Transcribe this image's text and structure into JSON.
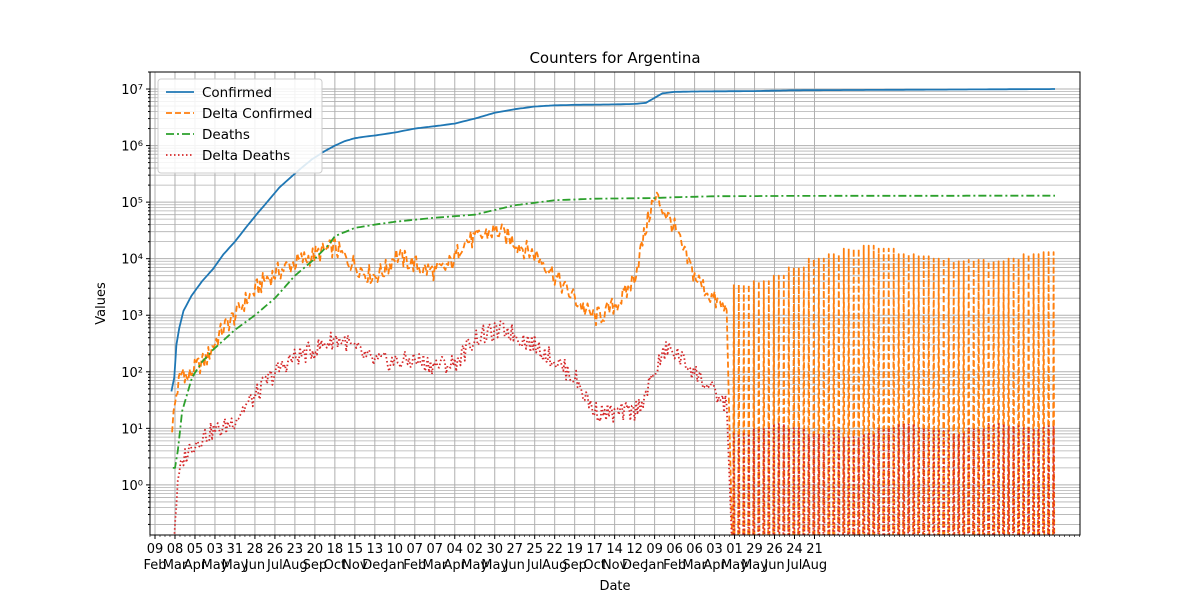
{
  "chart_data": {
    "type": "line",
    "title": "Counters for Argentina",
    "xlabel": "Date",
    "ylabel": "Values",
    "yscale": "log",
    "ylim": [
      0.13,
      20000000
    ],
    "grid": true,
    "legend_position": "top-left",
    "y_ticks": [
      {
        "value": 1,
        "label": "10⁰"
      },
      {
        "value": 10,
        "label": "10¹"
      },
      {
        "value": 100,
        "label": "10²"
      },
      {
        "value": 1000,
        "label": "10³"
      },
      {
        "value": 10000,
        "label": "10⁴"
      },
      {
        "value": 100000,
        "label": "10⁵"
      },
      {
        "value": 1000000,
        "label": "10⁶"
      },
      {
        "value": 10000000,
        "label": "10⁷"
      }
    ],
    "x_ticks": [
      {
        "day": "09",
        "month": "Feb"
      },
      {
        "day": "08",
        "month": "Mar"
      },
      {
        "day": "05",
        "month": "Apr"
      },
      {
        "day": "03",
        "month": "May"
      },
      {
        "day": "31",
        "month": "May"
      },
      {
        "day": "28",
        "month": "Jun"
      },
      {
        "day": "26",
        "month": "Jul"
      },
      {
        "day": "23",
        "month": "Aug"
      },
      {
        "day": "20",
        "month": "Sep"
      },
      {
        "day": "18",
        "month": "Oct"
      },
      {
        "day": "15",
        "month": "Nov"
      },
      {
        "day": "13",
        "month": "Dec"
      },
      {
        "day": "10",
        "month": "Jan"
      },
      {
        "day": "07",
        "month": "Feb"
      },
      {
        "day": "07",
        "month": "Mar"
      },
      {
        "day": "04",
        "month": "Apr"
      },
      {
        "day": "02",
        "month": "May"
      },
      {
        "day": "30",
        "month": "May"
      },
      {
        "day": "27",
        "month": "Jun"
      },
      {
        "day": "25",
        "month": "Jul"
      },
      {
        "day": "22",
        "month": "Aug"
      },
      {
        "day": "19",
        "month": "Sep"
      },
      {
        "day": "17",
        "month": "Oct"
      },
      {
        "day": "14",
        "month": "Nov"
      },
      {
        "day": "12",
        "month": "Dec"
      },
      {
        "day": "09",
        "month": "Jan"
      },
      {
        "day": "06",
        "month": "Feb"
      },
      {
        "day": "06",
        "month": "Mar"
      },
      {
        "day": "03",
        "month": "Apr"
      },
      {
        "day": "01",
        "month": "May"
      },
      {
        "day": "29",
        "month": "May"
      },
      {
        "day": "26",
        "month": "Jun"
      },
      {
        "day": "24",
        "month": "Jul"
      },
      {
        "day": "21",
        "month": "Aug"
      }
    ],
    "x_domain": [
      "2020-02-02",
      "2023-08-28"
    ],
    "series": [
      {
        "name": "Confirmed",
        "color": "#1f77b4",
        "style": "solid",
        "points": [
          [
            "2020-03-03",
            45
          ],
          [
            "2020-03-07",
            80
          ],
          [
            "2020-03-10",
            300
          ],
          [
            "2020-03-14",
            600
          ],
          [
            "2020-03-20",
            1200
          ],
          [
            "2020-03-31",
            2200
          ],
          [
            "2020-04-15",
            4000
          ],
          [
            "2020-04-30",
            6500
          ],
          [
            "2020-05-15",
            12000
          ],
          [
            "2020-05-31",
            20000
          ],
          [
            "2020-06-15",
            35000
          ],
          [
            "2020-06-30",
            60000
          ],
          [
            "2020-07-15",
            100000
          ],
          [
            "2020-08-01",
            180000
          ],
          [
            "2020-08-15",
            260000
          ],
          [
            "2020-09-01",
            400000
          ],
          [
            "2020-09-15",
            560000
          ],
          [
            "2020-10-01",
            760000
          ],
          [
            "2020-10-18",
            1000000
          ],
          [
            "2020-11-01",
            1200000
          ],
          [
            "2020-11-15",
            1350000
          ],
          [
            "2020-12-01",
            1450000
          ],
          [
            "2020-12-15",
            1520000
          ],
          [
            "2021-01-10",
            1700000
          ],
          [
            "2021-02-07",
            2000000
          ],
          [
            "2021-03-07",
            2200000
          ],
          [
            "2021-04-04",
            2450000
          ],
          [
            "2021-05-02",
            3000000
          ],
          [
            "2021-05-30",
            3800000
          ],
          [
            "2021-06-27",
            4400000
          ],
          [
            "2021-07-25",
            4900000
          ],
          [
            "2021-08-22",
            5150000
          ],
          [
            "2021-09-19",
            5250000
          ],
          [
            "2021-10-17",
            5300000
          ],
          [
            "2021-11-14",
            5350000
          ],
          [
            "2021-12-12",
            5450000
          ],
          [
            "2021-12-28",
            5700000
          ],
          [
            "2022-01-09",
            7000000
          ],
          [
            "2022-01-20",
            8400000
          ],
          [
            "2022-02-06",
            8900000
          ],
          [
            "2022-03-06",
            9050000
          ],
          [
            "2022-04-03",
            9100000
          ],
          [
            "2022-05-29",
            9200000
          ],
          [
            "2022-07-24",
            9500000
          ],
          [
            "2023-07-24",
            10000000
          ]
        ]
      },
      {
        "name": "Delta Confirmed",
        "color": "#ff7f0e",
        "style": "dashed",
        "points": [
          [
            "2020-03-04",
            11
          ],
          [
            "2020-03-10",
            40
          ],
          [
            "2020-03-15",
            80
          ],
          [
            "2020-03-20",
            110
          ],
          [
            "2020-03-25",
            70
          ],
          [
            "2020-04-01",
            100
          ],
          [
            "2020-04-10",
            130
          ],
          [
            "2020-04-20",
            160
          ],
          [
            "2020-05-01",
            300
          ],
          [
            "2020-05-15",
            600
          ],
          [
            "2020-06-01",
            1000
          ],
          [
            "2020-06-15",
            1800
          ],
          [
            "2020-07-01",
            3000
          ],
          [
            "2020-07-15",
            4500
          ],
          [
            "2020-08-01",
            6000
          ],
          [
            "2020-08-15",
            7500
          ],
          [
            "2020-09-01",
            9500
          ],
          [
            "2020-09-15",
            11000
          ],
          [
            "2020-10-01",
            13000
          ],
          [
            "2020-10-18",
            16000
          ],
          [
            "2020-11-01",
            10000
          ],
          [
            "2020-11-15",
            8000
          ],
          [
            "2020-12-01",
            5500
          ],
          [
            "2020-12-13",
            5000
          ],
          [
            "2021-01-01",
            7000
          ],
          [
            "2021-01-10",
            12000
          ],
          [
            "2021-01-20",
            10000
          ],
          [
            "2021-02-07",
            8000
          ],
          [
            "2021-02-20",
            6500
          ],
          [
            "2021-03-07",
            6000
          ],
          [
            "2021-03-20",
            6500
          ],
          [
            "2021-04-04",
            10000
          ],
          [
            "2021-04-15",
            20000
          ],
          [
            "2021-05-02",
            22000
          ],
          [
            "2021-05-20",
            28000
          ],
          [
            "2021-06-01",
            32000
          ],
          [
            "2021-06-15",
            25000
          ],
          [
            "2021-06-27",
            20000
          ],
          [
            "2021-07-10",
            15000
          ],
          [
            "2021-07-25",
            12000
          ],
          [
            "2021-08-10",
            8000
          ],
          [
            "2021-08-22",
            5000
          ],
          [
            "2021-09-05",
            3000
          ],
          [
            "2021-09-19",
            2000
          ],
          [
            "2021-10-05",
            1200
          ],
          [
            "2021-10-17",
            900
          ],
          [
            "2021-11-01",
            1100
          ],
          [
            "2021-11-14",
            1500
          ],
          [
            "2021-12-01",
            2500
          ],
          [
            "2021-12-12",
            5000
          ],
          [
            "2021-12-25",
            25000
          ],
          [
            "2022-01-05",
            90000
          ],
          [
            "2022-01-12",
            120000
          ],
          [
            "2022-01-20",
            80000
          ],
          [
            "2022-02-06",
            35000
          ],
          [
            "2022-02-20",
            12000
          ],
          [
            "2022-03-06",
            5000
          ],
          [
            "2022-03-20",
            3000
          ],
          [
            "2022-04-03",
            1800
          ],
          [
            "2022-04-20",
            1200
          ]
        ]
      },
      {
        "name": "Deaths",
        "color": "#2ca02c",
        "style": "dashdot",
        "points": [
          [
            "2020-03-05",
            2
          ],
          [
            "2020-03-08",
            2
          ],
          [
            "2020-03-12",
            4
          ],
          [
            "2020-03-18",
            20
          ],
          [
            "2020-03-25",
            40
          ],
          [
            "2020-04-01",
            80
          ],
          [
            "2020-04-15",
            150
          ],
          [
            "2020-05-01",
            250
          ],
          [
            "2020-05-31",
            550
          ],
          [
            "2020-06-28",
            1000
          ],
          [
            "2020-07-26",
            2000
          ],
          [
            "2020-08-23",
            5000
          ],
          [
            "2020-09-20",
            10000
          ],
          [
            "2020-10-10",
            18000
          ],
          [
            "2020-10-18",
            25000
          ],
          [
            "2020-11-15",
            35000
          ],
          [
            "2020-12-13",
            40000
          ],
          [
            "2021-01-10",
            45000
          ],
          [
            "2021-03-07",
            53000
          ],
          [
            "2021-05-02",
            60000
          ],
          [
            "2021-06-27",
            88000
          ],
          [
            "2021-08-22",
            108000
          ],
          [
            "2021-10-17",
            115000
          ],
          [
            "2021-12-12",
            117000
          ],
          [
            "2022-01-09",
            118000
          ],
          [
            "2022-02-06",
            122000
          ],
          [
            "2022-04-03",
            127000
          ],
          [
            "2022-07-24",
            129000
          ],
          [
            "2023-07-24",
            130000
          ]
        ]
      },
      {
        "name": "Delta Deaths",
        "color": "#d62728",
        "style": "dotted",
        "points": [
          [
            "2020-03-07",
            0.14
          ],
          [
            "2020-03-10",
            0.5
          ],
          [
            "2020-03-14",
            1.5
          ],
          [
            "2020-03-20",
            3
          ],
          [
            "2020-04-01",
            5
          ],
          [
            "2020-04-15",
            7
          ],
          [
            "2020-05-01",
            9
          ],
          [
            "2020-05-15",
            10
          ],
          [
            "2020-06-01",
            15
          ],
          [
            "2020-06-15",
            25
          ],
          [
            "2020-07-01",
            40
          ],
          [
            "2020-07-15",
            70
          ],
          [
            "2020-08-01",
            110
          ],
          [
            "2020-08-15",
            160
          ],
          [
            "2020-09-01",
            200
          ],
          [
            "2020-09-15",
            230
          ],
          [
            "2020-10-01",
            300
          ],
          [
            "2020-10-18",
            380
          ],
          [
            "2020-11-01",
            350
          ],
          [
            "2020-11-15",
            250
          ],
          [
            "2020-12-01",
            180
          ],
          [
            "2020-12-13",
            150
          ],
          [
            "2021-01-10",
            150
          ],
          [
            "2021-02-07",
            160
          ],
          [
            "2021-03-07",
            130
          ],
          [
            "2021-04-04",
            140
          ],
          [
            "2021-04-20",
            250
          ],
          [
            "2021-05-02",
            400
          ],
          [
            "2021-05-30",
            500
          ],
          [
            "2021-06-15",
            560
          ],
          [
            "2021-06-27",
            450
          ],
          [
            "2021-07-25",
            300
          ],
          [
            "2021-08-22",
            160
          ],
          [
            "2021-09-19",
            80
          ],
          [
            "2021-10-05",
            35
          ],
          [
            "2021-10-17",
            20
          ],
          [
            "2021-11-14",
            18
          ],
          [
            "2021-12-12",
            20
          ],
          [
            "2021-12-28",
            40
          ],
          [
            "2022-01-09",
            100
          ],
          [
            "2022-01-25",
            250
          ],
          [
            "2022-02-06",
            220
          ],
          [
            "2022-03-06",
            100
          ],
          [
            "2022-04-03",
            40
          ],
          [
            "2022-04-20",
            25
          ]
        ]
      }
    ],
    "weekly_spikes": {
      "start": "2022-04-29",
      "end": "2023-07-24",
      "every_days": 7,
      "delta_confirmed_high": [
        3500,
        4000,
        5000,
        7000,
        10000,
        12000,
        15000,
        17000,
        15000,
        12000,
        11000,
        10000,
        9000,
        9500,
        9000,
        10000,
        12000,
        13000
      ],
      "delta_deaths_high": [
        8,
        10,
        12,
        10,
        8,
        9,
        7,
        8,
        10,
        12,
        10,
        9,
        8,
        10,
        12,
        11,
        10,
        11
      ]
    }
  }
}
